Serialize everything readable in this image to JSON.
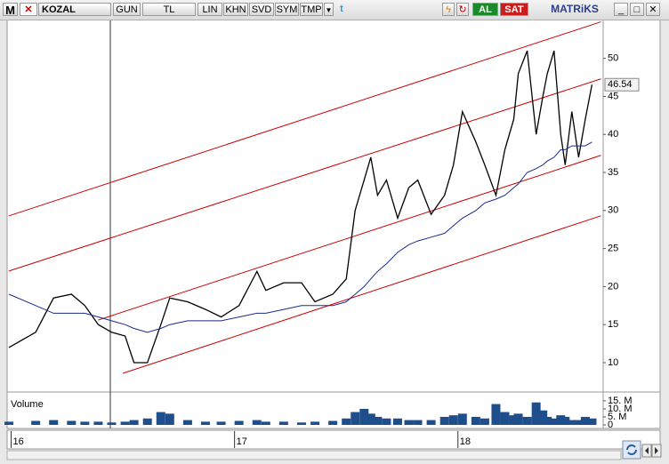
{
  "toolbar": {
    "logo": "M",
    "symbol": "KOZAL",
    "period": "GUN",
    "currency": "TL",
    "buttons": [
      "LIN",
      "KHN",
      "SVD",
      "SYM",
      "TMP"
    ],
    "buy": "AL",
    "sell": "SAT",
    "brand": "MATRiKS"
  },
  "chart_data": [
    {
      "type": "line",
      "x": [
        2015.99,
        2016.11,
        2016.19,
        2016.27,
        2016.33,
        2016.39,
        2016.45,
        2016.51,
        2016.55,
        2016.61,
        2016.67,
        2016.71,
        2016.79,
        2016.87,
        2016.94,
        2017.02,
        2017.1,
        2017.14,
        2017.22,
        2017.3,
        2017.36,
        2017.44,
        2017.5,
        2017.54,
        2017.58,
        2017.61,
        2017.64,
        2017.68,
        2017.73,
        2017.78,
        2017.82,
        2017.88,
        2017.94,
        2017.98,
        2018.02,
        2018.08,
        2018.12,
        2018.17,
        2018.21,
        2018.25,
        2018.27,
        2018.31,
        2018.35,
        2018.38,
        2018.4,
        2018.43,
        2018.46,
        2018.48,
        2018.51,
        2018.54,
        2018.57,
        2018.6
      ],
      "series": [
        {
          "color": "#000000",
          "values": [
            12,
            14,
            18.5,
            19,
            17.5,
            15,
            14,
            13.5,
            10,
            10,
            15,
            18.5,
            18,
            17,
            16,
            17.5,
            22,
            19.5,
            20.5,
            20.5,
            18,
            19,
            21,
            30,
            34,
            37,
            32,
            34,
            29,
            33,
            34,
            29.5,
            32,
            36,
            43,
            39,
            36,
            32,
            38,
            42,
            48,
            51,
            40,
            45,
            48,
            51,
            40,
            36,
            43,
            37,
            42,
            46.54
          ]
        },
        {
          "color": "#1a2a8a",
          "values": [
            19,
            17.5,
            16.5,
            16.5,
            16.5,
            16,
            15.5,
            15,
            14.5,
            14,
            14.5,
            15,
            15.5,
            15.5,
            15.5,
            16,
            16.5,
            16.5,
            17,
            17.5,
            17.5,
            17.5,
            18,
            19,
            20,
            21,
            22,
            23,
            24.5,
            25.5,
            26,
            26.5,
            27,
            28,
            29,
            30,
            31,
            31.5,
            32,
            33,
            33.5,
            35,
            35.5,
            36,
            36.5,
            37,
            38,
            38,
            38.5,
            38.5,
            38.5,
            39
          ]
        }
      ],
      "trend_lines": [
        {
          "x": [
            2015.99,
            2018.64
          ],
          "y": [
            29.3,
            54.8
          ]
        },
        {
          "x": [
            2015.99,
            2018.64
          ],
          "y": [
            22.05,
            47.3
          ]
        },
        {
          "x": [
            2016.39,
            2018.64
          ],
          "y": [
            15.6,
            37.25
          ]
        },
        {
          "x": [
            2016.5,
            2018.64
          ],
          "y": [
            8.6,
            29.3
          ]
        }
      ],
      "trend_color": "#cc0000",
      "xlim": [
        2015.99,
        2018.65
      ],
      "xticks": [
        {
          "value": 2016,
          "label": "16"
        },
        {
          "value": 2017,
          "label": "17"
        },
        {
          "value": 2018,
          "label": "18"
        }
      ],
      "ylim": [
        6.26,
        55.1
      ],
      "yticks": [
        10,
        15,
        20,
        25,
        30,
        35,
        40,
        45,
        50
      ],
      "grid": false
    },
    {
      "type": "bar",
      "title": "Volume",
      "x": [
        2015.99,
        2016.11,
        2016.19,
        2016.27,
        2016.33,
        2016.39,
        2016.45,
        2016.51,
        2016.55,
        2016.61,
        2016.67,
        2016.71,
        2016.79,
        2016.87,
        2016.94,
        2017.02,
        2017.1,
        2017.14,
        2017.22,
        2017.3,
        2017.36,
        2017.44,
        2017.5,
        2017.54,
        2017.58,
        2017.61,
        2017.64,
        2017.68,
        2017.73,
        2017.78,
        2017.82,
        2017.88,
        2017.94,
        2017.98,
        2018.02,
        2018.08,
        2018.12,
        2018.17,
        2018.21,
        2018.25,
        2018.27,
        2018.31,
        2018.35,
        2018.38,
        2018.4,
        2018.43,
        2018.46,
        2018.48,
        2018.51,
        2018.54,
        2018.57,
        2018.6
      ],
      "values": [
        2,
        2.5,
        3,
        2.5,
        2,
        2,
        1.5,
        2,
        3,
        4,
        8,
        7,
        3,
        2,
        2,
        2.5,
        3,
        2,
        2,
        1.5,
        2,
        2.5,
        4,
        8,
        10,
        7,
        5,
        4,
        4,
        3,
        3,
        3,
        5,
        6,
        7,
        5,
        4,
        13,
        8,
        6,
        7,
        5,
        14,
        9,
        5,
        4,
        6,
        5,
        3,
        3,
        5,
        4
      ],
      "color": "#1f4e8c",
      "xlim": [
        2015.99,
        2018.65
      ],
      "ylim": [
        0,
        19.4
      ],
      "yticks": [
        {
          "value": 15,
          "label": "15. M"
        },
        {
          "value": 10,
          "label": "10. M"
        },
        {
          "value": 5,
          "label": "5. M"
        },
        0
      ]
    }
  ]
}
